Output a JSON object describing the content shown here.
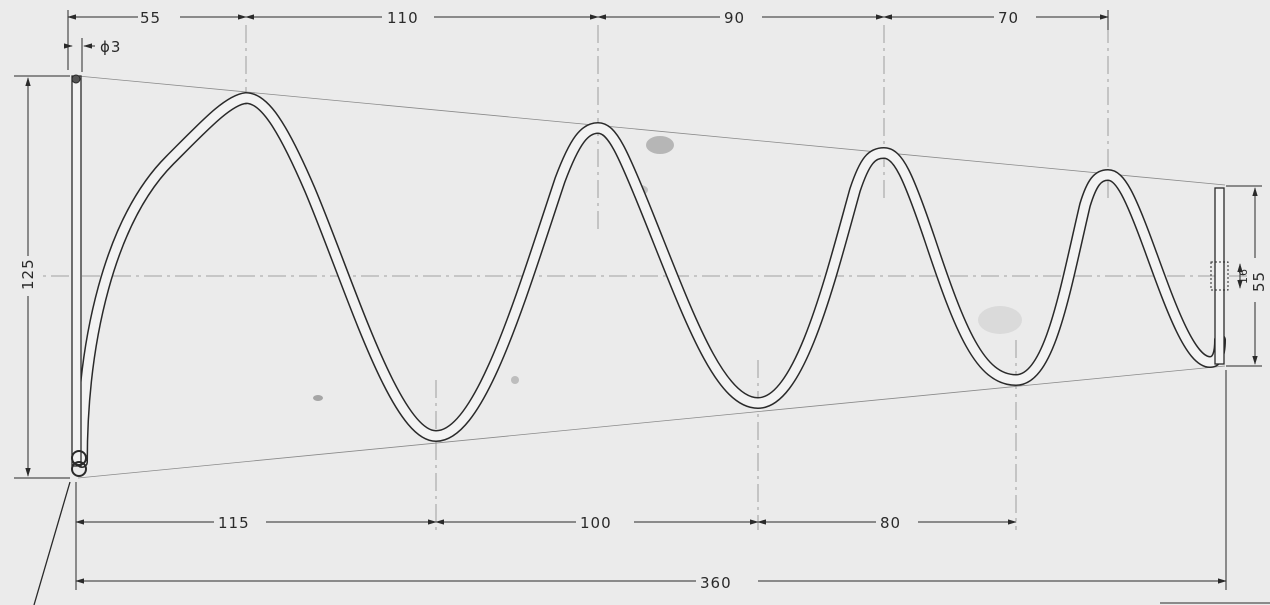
{
  "drawing": {
    "subject": "wire-spring",
    "wire_diameter": "ϕ3",
    "total_height": "125",
    "end_height": "55",
    "end_tube": "16",
    "peak_spacings": [
      "55",
      "110",
      "90",
      "70"
    ],
    "trough_spacings": [
      "115",
      "100",
      "80"
    ],
    "overall_length": "360"
  },
  "colors": {
    "paper": "#ebebeb",
    "ink": "#2a2a2a",
    "wire_fill": "#f3f3f3",
    "centerline": "#8a8a8a"
  }
}
